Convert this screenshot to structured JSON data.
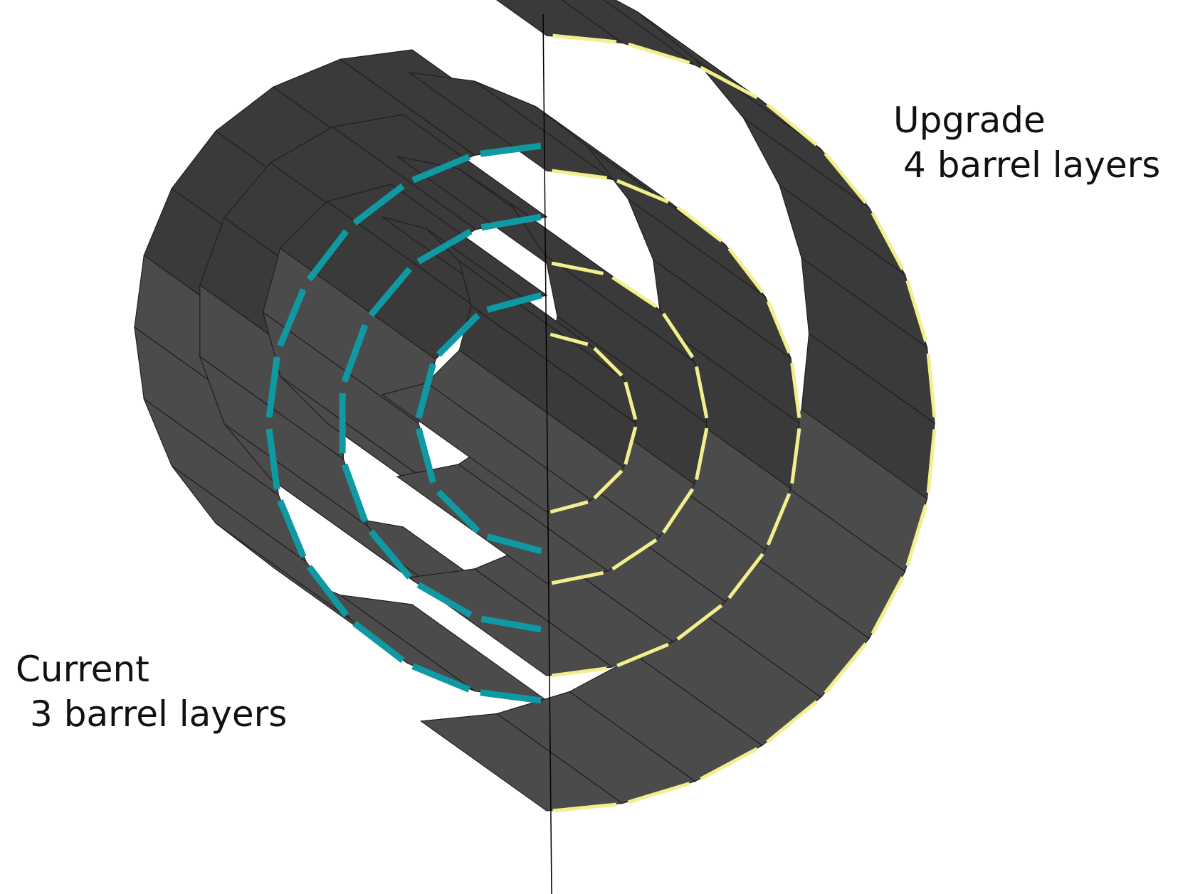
{
  "labels": {
    "upgrade": {
      "line1": "Upgrade",
      "line2": "4 barrel layers"
    },
    "current": {
      "line1": "Current",
      "line2": "3 barrel layers"
    }
  },
  "colors": {
    "current_layers": "#0f9aa3",
    "upgrade_layers": "#f3ef8c",
    "module_dark": "#3a3a3a",
    "module_light": "#4b4b4b",
    "ladder_edge": "#1f1f1f",
    "background": "#ffffff"
  },
  "current_detector": {
    "barrel_layer_count": 3
  },
  "upgrade_detector": {
    "barrel_layer_count": 4
  }
}
